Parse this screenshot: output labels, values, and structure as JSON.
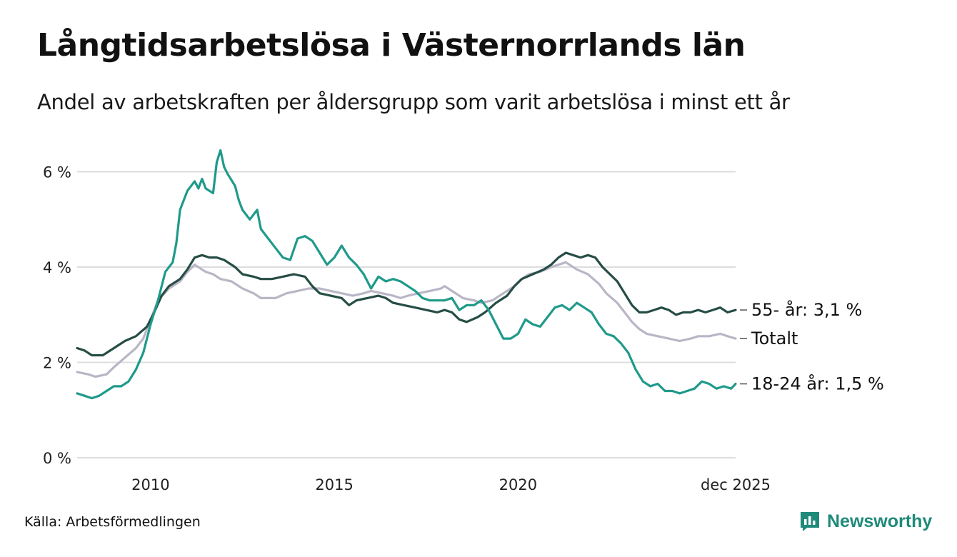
{
  "title": "Långtidsarbetslösa i Västernorrlands län",
  "subtitle": "Andel av arbetskraften per åldersgrupp som varit arbetslösa i minst ett år",
  "source": "Källa: Arbetsförmedlingen",
  "brand": "Newsworthy",
  "colors": {
    "series_55": "#264d45",
    "series_total": "#b9b6c6",
    "series_18_24": "#1f9a8a",
    "grid": "#dddddd",
    "brand": "#1f8a7a"
  },
  "chart_data": {
    "type": "line",
    "title": "Långtidsarbetslösa i Västernorrlands län",
    "xlabel": "",
    "ylabel": "",
    "x_unit": "year (decimal)",
    "xlim": [
      2008.0,
      2025.92
    ],
    "ylim": [
      0,
      6.6
    ],
    "y_ticks": [
      0,
      2,
      4,
      6
    ],
    "y_tick_labels": [
      "0 %",
      "2 %",
      "4 %",
      "6 %"
    ],
    "x_ticks": [
      2010,
      2015,
      2020,
      2025.92
    ],
    "x_tick_labels": [
      "2010",
      "2015",
      "2020",
      "dec 2025"
    ],
    "grid": true,
    "series": [
      {
        "name": "Totalt",
        "label": "Totalt",
        "color": "#b9b6c6",
        "points": [
          [
            2008.0,
            1.8
          ],
          [
            2008.3,
            1.75
          ],
          [
            2008.5,
            1.7
          ],
          [
            2008.8,
            1.75
          ],
          [
            2009.0,
            1.9
          ],
          [
            2009.3,
            2.1
          ],
          [
            2009.6,
            2.3
          ],
          [
            2009.8,
            2.5
          ],
          [
            2010.0,
            2.9
          ],
          [
            2010.2,
            3.3
          ],
          [
            2010.5,
            3.55
          ],
          [
            2010.8,
            3.7
          ],
          [
            2011.0,
            3.9
          ],
          [
            2011.2,
            4.05
          ],
          [
            2011.5,
            3.9
          ],
          [
            2011.7,
            3.85
          ],
          [
            2011.9,
            3.75
          ],
          [
            2012.2,
            3.7
          ],
          [
            2012.5,
            3.55
          ],
          [
            2012.8,
            3.45
          ],
          [
            2013.0,
            3.35
          ],
          [
            2013.4,
            3.35
          ],
          [
            2013.7,
            3.45
          ],
          [
            2014.0,
            3.5
          ],
          [
            2014.3,
            3.55
          ],
          [
            2014.6,
            3.55
          ],
          [
            2014.9,
            3.5
          ],
          [
            2015.2,
            3.45
          ],
          [
            2015.5,
            3.4
          ],
          [
            2015.8,
            3.45
          ],
          [
            2016.0,
            3.5
          ],
          [
            2016.3,
            3.45
          ],
          [
            2016.6,
            3.4
          ],
          [
            2016.8,
            3.35
          ],
          [
            2017.0,
            3.4
          ],
          [
            2017.3,
            3.45
          ],
          [
            2017.6,
            3.5
          ],
          [
            2017.9,
            3.55
          ],
          [
            2018.0,
            3.6
          ],
          [
            2018.2,
            3.5
          ],
          [
            2018.5,
            3.35
          ],
          [
            2018.8,
            3.3
          ],
          [
            2019.0,
            3.25
          ],
          [
            2019.3,
            3.3
          ],
          [
            2019.6,
            3.45
          ],
          [
            2019.9,
            3.6
          ],
          [
            2020.1,
            3.75
          ],
          [
            2020.3,
            3.85
          ],
          [
            2020.6,
            3.9
          ],
          [
            2020.9,
            4.0
          ],
          [
            2021.1,
            4.05
          ],
          [
            2021.3,
            4.1
          ],
          [
            2021.6,
            3.95
          ],
          [
            2021.9,
            3.85
          ],
          [
            2022.2,
            3.65
          ],
          [
            2022.4,
            3.45
          ],
          [
            2022.7,
            3.25
          ],
          [
            2022.9,
            3.05
          ],
          [
            2023.1,
            2.85
          ],
          [
            2023.3,
            2.7
          ],
          [
            2023.5,
            2.6
          ],
          [
            2023.8,
            2.55
          ],
          [
            2024.1,
            2.5
          ],
          [
            2024.4,
            2.45
          ],
          [
            2024.7,
            2.5
          ],
          [
            2024.9,
            2.55
          ],
          [
            2025.2,
            2.55
          ],
          [
            2025.5,
            2.6
          ],
          [
            2025.7,
            2.55
          ],
          [
            2025.92,
            2.5
          ]
        ]
      },
      {
        "name": "55- år",
        "label": "55- år: 3,1 %",
        "color": "#264d45",
        "points": [
          [
            2008.0,
            2.3
          ],
          [
            2008.2,
            2.25
          ],
          [
            2008.4,
            2.15
          ],
          [
            2008.7,
            2.15
          ],
          [
            2009.0,
            2.3
          ],
          [
            2009.3,
            2.45
          ],
          [
            2009.6,
            2.55
          ],
          [
            2009.9,
            2.75
          ],
          [
            2010.1,
            3.05
          ],
          [
            2010.3,
            3.4
          ],
          [
            2010.5,
            3.6
          ],
          [
            2010.8,
            3.75
          ],
          [
            2011.0,
            3.95
          ],
          [
            2011.2,
            4.2
          ],
          [
            2011.4,
            4.25
          ],
          [
            2011.6,
            4.2
          ],
          [
            2011.8,
            4.2
          ],
          [
            2012.0,
            4.15
          ],
          [
            2012.3,
            4.0
          ],
          [
            2012.5,
            3.85
          ],
          [
            2012.8,
            3.8
          ],
          [
            2013.0,
            3.75
          ],
          [
            2013.3,
            3.75
          ],
          [
            2013.6,
            3.8
          ],
          [
            2013.9,
            3.85
          ],
          [
            2014.2,
            3.8
          ],
          [
            2014.4,
            3.6
          ],
          [
            2014.6,
            3.45
          ],
          [
            2014.9,
            3.4
          ],
          [
            2015.2,
            3.35
          ],
          [
            2015.4,
            3.2
          ],
          [
            2015.6,
            3.3
          ],
          [
            2015.9,
            3.35
          ],
          [
            2016.2,
            3.4
          ],
          [
            2016.4,
            3.35
          ],
          [
            2016.6,
            3.25
          ],
          [
            2016.9,
            3.2
          ],
          [
            2017.2,
            3.15
          ],
          [
            2017.5,
            3.1
          ],
          [
            2017.8,
            3.05
          ],
          [
            2018.0,
            3.1
          ],
          [
            2018.2,
            3.05
          ],
          [
            2018.4,
            2.9
          ],
          [
            2018.6,
            2.85
          ],
          [
            2018.9,
            2.95
          ],
          [
            2019.1,
            3.05
          ],
          [
            2019.4,
            3.25
          ],
          [
            2019.7,
            3.4
          ],
          [
            2019.9,
            3.6
          ],
          [
            2020.1,
            3.75
          ],
          [
            2020.4,
            3.85
          ],
          [
            2020.7,
            3.95
          ],
          [
            2020.9,
            4.05
          ],
          [
            2021.1,
            4.2
          ],
          [
            2021.3,
            4.3
          ],
          [
            2021.5,
            4.25
          ],
          [
            2021.7,
            4.2
          ],
          [
            2021.9,
            4.25
          ],
          [
            2022.1,
            4.2
          ],
          [
            2022.3,
            4.0
          ],
          [
            2022.5,
            3.85
          ],
          [
            2022.7,
            3.7
          ],
          [
            2022.9,
            3.45
          ],
          [
            2023.1,
            3.2
          ],
          [
            2023.3,
            3.05
          ],
          [
            2023.5,
            3.05
          ],
          [
            2023.7,
            3.1
          ],
          [
            2023.9,
            3.15
          ],
          [
            2024.1,
            3.1
          ],
          [
            2024.3,
            3.0
          ],
          [
            2024.5,
            3.05
          ],
          [
            2024.7,
            3.05
          ],
          [
            2024.9,
            3.1
          ],
          [
            2025.1,
            3.05
          ],
          [
            2025.3,
            3.1
          ],
          [
            2025.5,
            3.15
          ],
          [
            2025.7,
            3.05
          ],
          [
            2025.92,
            3.1
          ]
        ]
      },
      {
        "name": "18-24 år",
        "label": "18-24 år: 1,5 %",
        "color": "#1f9a8a",
        "points": [
          [
            2008.0,
            1.35
          ],
          [
            2008.2,
            1.3
          ],
          [
            2008.4,
            1.25
          ],
          [
            2008.6,
            1.3
          ],
          [
            2008.8,
            1.4
          ],
          [
            2009.0,
            1.5
          ],
          [
            2009.2,
            1.5
          ],
          [
            2009.4,
            1.6
          ],
          [
            2009.6,
            1.85
          ],
          [
            2009.8,
            2.2
          ],
          [
            2010.0,
            2.8
          ],
          [
            2010.2,
            3.3
          ],
          [
            2010.4,
            3.9
          ],
          [
            2010.6,
            4.1
          ],
          [
            2010.7,
            4.5
          ],
          [
            2010.8,
            5.2
          ],
          [
            2011.0,
            5.6
          ],
          [
            2011.1,
            5.7
          ],
          [
            2011.2,
            5.8
          ],
          [
            2011.3,
            5.65
          ],
          [
            2011.4,
            5.85
          ],
          [
            2011.5,
            5.65
          ],
          [
            2011.6,
            5.6
          ],
          [
            2011.7,
            5.55
          ],
          [
            2011.8,
            6.2
          ],
          [
            2011.9,
            6.45
          ],
          [
            2012.0,
            6.1
          ],
          [
            2012.1,
            5.95
          ],
          [
            2012.3,
            5.7
          ],
          [
            2012.4,
            5.4
          ],
          [
            2012.5,
            5.2
          ],
          [
            2012.7,
            5.0
          ],
          [
            2012.9,
            5.2
          ],
          [
            2013.0,
            4.8
          ],
          [
            2013.2,
            4.6
          ],
          [
            2013.4,
            4.4
          ],
          [
            2013.6,
            4.2
          ],
          [
            2013.8,
            4.15
          ],
          [
            2014.0,
            4.6
          ],
          [
            2014.2,
            4.65
          ],
          [
            2014.4,
            4.55
          ],
          [
            2014.6,
            4.3
          ],
          [
            2014.8,
            4.05
          ],
          [
            2015.0,
            4.2
          ],
          [
            2015.2,
            4.45
          ],
          [
            2015.4,
            4.2
          ],
          [
            2015.6,
            4.05
          ],
          [
            2015.8,
            3.85
          ],
          [
            2016.0,
            3.55
          ],
          [
            2016.2,
            3.8
          ],
          [
            2016.4,
            3.7
          ],
          [
            2016.6,
            3.75
          ],
          [
            2016.8,
            3.7
          ],
          [
            2017.0,
            3.6
          ],
          [
            2017.2,
            3.5
          ],
          [
            2017.4,
            3.35
          ],
          [
            2017.6,
            3.3
          ],
          [
            2017.8,
            3.3
          ],
          [
            2018.0,
            3.3
          ],
          [
            2018.2,
            3.35
          ],
          [
            2018.4,
            3.1
          ],
          [
            2018.6,
            3.2
          ],
          [
            2018.8,
            3.2
          ],
          [
            2019.0,
            3.3
          ],
          [
            2019.2,
            3.1
          ],
          [
            2019.4,
            2.8
          ],
          [
            2019.6,
            2.5
          ],
          [
            2019.8,
            2.5
          ],
          [
            2020.0,
            2.6
          ],
          [
            2020.2,
            2.9
          ],
          [
            2020.4,
            2.8
          ],
          [
            2020.6,
            2.75
          ],
          [
            2020.8,
            2.95
          ],
          [
            2021.0,
            3.15
          ],
          [
            2021.2,
            3.2
          ],
          [
            2021.4,
            3.1
          ],
          [
            2021.6,
            3.25
          ],
          [
            2021.8,
            3.15
          ],
          [
            2022.0,
            3.05
          ],
          [
            2022.2,
            2.8
          ],
          [
            2022.4,
            2.6
          ],
          [
            2022.6,
            2.55
          ],
          [
            2022.8,
            2.4
          ],
          [
            2023.0,
            2.2
          ],
          [
            2023.2,
            1.85
          ],
          [
            2023.4,
            1.6
          ],
          [
            2023.6,
            1.5
          ],
          [
            2023.8,
            1.55
          ],
          [
            2024.0,
            1.4
          ],
          [
            2024.2,
            1.4
          ],
          [
            2024.4,
            1.35
          ],
          [
            2024.6,
            1.4
          ],
          [
            2024.8,
            1.45
          ],
          [
            2025.0,
            1.6
          ],
          [
            2025.2,
            1.55
          ],
          [
            2025.4,
            1.45
          ],
          [
            2025.6,
            1.5
          ],
          [
            2025.8,
            1.45
          ],
          [
            2025.92,
            1.55
          ]
        ]
      }
    ]
  }
}
